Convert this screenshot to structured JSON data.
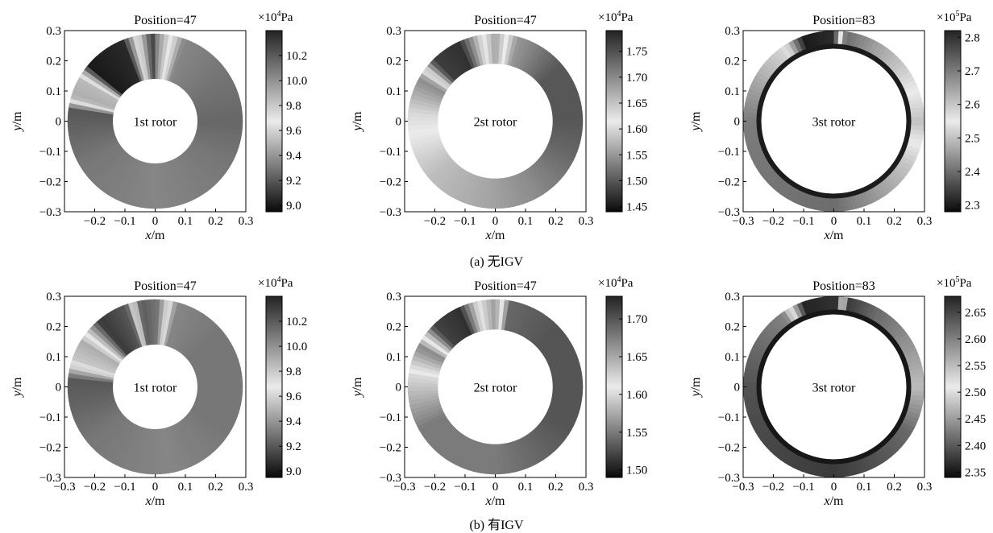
{
  "figure": {
    "rows": [
      {
        "caption": "(a) 无IGV"
      },
      {
        "caption": "(b) 有IGV"
      }
    ]
  },
  "chart_data": [
    {
      "type": "heatmap",
      "row": 0,
      "col": 0,
      "title": "Position=47",
      "label": "1st rotor",
      "xlabel": "x",
      "xunit": "/m",
      "ylabel": "y",
      "yunit": "/m",
      "xticks": [
        "−0.2",
        "−0.1",
        "0",
        "0.1",
        "0.2",
        "0.3"
      ],
      "yticks": [
        "0.3",
        "0.2",
        "0.1",
        "0",
        "−0.1",
        "−0.2",
        "−0.3"
      ],
      "xlim": [
        -0.3,
        0.3
      ],
      "ylim": [
        -0.3,
        0.3
      ],
      "annulus_radius_m": [
        0.14,
        0.29
      ],
      "colorbar": {
        "unit_prefix": "×10",
        "unit_exp": "4",
        "unit": "Pa",
        "range": [
          8.95,
          10.4
        ],
        "ticks": [
          "10.2",
          "10.0",
          "9.8",
          "9.6",
          "9.4",
          "9.2",
          "9.0"
        ]
      },
      "field": [
        {
          "angle_deg": 0,
          "value": 9.25
        },
        {
          "angle_deg": 40,
          "value": 9.3
        },
        {
          "angle_deg": 70,
          "value": 9.35
        },
        {
          "angle_deg": 88,
          "value": 10.0
        },
        {
          "angle_deg": 92,
          "value": 10.3
        },
        {
          "angle_deg": 102,
          "value": 9.7
        },
        {
          "angle_deg": 112,
          "value": 9.05
        },
        {
          "angle_deg": 140,
          "value": 9.0
        },
        {
          "angle_deg": 150,
          "value": 9.85
        },
        {
          "angle_deg": 163,
          "value": 9.9
        },
        {
          "angle_deg": 172,
          "value": 9.2
        },
        {
          "angle_deg": 210,
          "value": 9.3
        },
        {
          "angle_deg": 270,
          "value": 9.35
        },
        {
          "angle_deg": 330,
          "value": 9.3
        },
        {
          "angle_deg": 360,
          "value": 9.25
        }
      ]
    },
    {
      "type": "heatmap",
      "row": 0,
      "col": 1,
      "title": "Position=47",
      "label": "2st rotor",
      "xlabel": "x",
      "xunit": "/m",
      "ylabel": "y",
      "yunit": "/m",
      "xticks": [
        "−0.2",
        "−0.1",
        "0",
        "0.1",
        "0.2",
        "0.3"
      ],
      "yticks": [
        "0.3",
        "0.2",
        "0.1",
        "0",
        "−0.1",
        "−0.2",
        "−0.3"
      ],
      "xlim": [
        -0.3,
        0.3
      ],
      "ylim": [
        -0.3,
        0.3
      ],
      "annulus_radius_m": [
        0.19,
        0.29
      ],
      "colorbar": {
        "unit_prefix": "×10",
        "unit_exp": "4",
        "unit": "Pa",
        "range": [
          1.44,
          1.79
        ],
        "ticks": [
          "1.75",
          "1.70",
          "1.65",
          "1.60",
          "1.55",
          "1.50",
          "1.45"
        ]
      },
      "field": [
        {
          "angle_deg": 0,
          "value": 1.5
        },
        {
          "angle_deg": 40,
          "value": 1.5
        },
        {
          "angle_deg": 75,
          "value": 1.55
        },
        {
          "angle_deg": 90,
          "value": 1.68
        },
        {
          "angle_deg": 100,
          "value": 1.6
        },
        {
          "angle_deg": 115,
          "value": 1.47
        },
        {
          "angle_deg": 135,
          "value": 1.48
        },
        {
          "angle_deg": 150,
          "value": 1.7
        },
        {
          "angle_deg": 175,
          "value": 1.63
        },
        {
          "angle_deg": 220,
          "value": 1.58
        },
        {
          "angle_deg": 265,
          "value": 1.56
        },
        {
          "angle_deg": 300,
          "value": 1.54
        },
        {
          "angle_deg": 340,
          "value": 1.51
        },
        {
          "angle_deg": 360,
          "value": 1.5
        }
      ]
    },
    {
      "type": "heatmap",
      "row": 0,
      "col": 2,
      "title": "Position=83",
      "label": "3st rotor",
      "xlabel": "x",
      "xunit": "/m",
      "ylabel": "y",
      "yunit": "/m",
      "xticks": [
        "−0.3",
        "−0.2",
        "−0.1",
        "0",
        "0.1",
        "0.2",
        "0.3"
      ],
      "yticks": [
        "0.3",
        "0.2",
        "0.1",
        "0",
        "−0.1",
        "−0.2",
        "−0.3"
      ],
      "xlim": [
        -0.3,
        0.3
      ],
      "ylim": [
        -0.3,
        0.3
      ],
      "annulus_radius_m": [
        0.24,
        0.3
      ],
      "colorbar": {
        "unit_prefix": "×10",
        "unit_exp": "5",
        "unit": "Pa",
        "range": [
          2.28,
          2.82
        ],
        "ticks": [
          "2.8",
          "2.7",
          "2.6",
          "2.5",
          "2.4",
          "2.3"
        ]
      },
      "field": [
        {
          "angle_deg": 0,
          "value": 2.5
        },
        {
          "angle_deg": 60,
          "value": 2.65
        },
        {
          "angle_deg": 82,
          "value": 2.72
        },
        {
          "angle_deg": 90,
          "value": 2.32
        },
        {
          "angle_deg": 110,
          "value": 2.3
        },
        {
          "angle_deg": 125,
          "value": 2.58
        },
        {
          "angle_deg": 180,
          "value": 2.7
        },
        {
          "angle_deg": 270,
          "value": 2.72
        },
        {
          "angle_deg": 330,
          "value": 2.6
        },
        {
          "angle_deg": 360,
          "value": 2.5
        }
      ],
      "inner_edge_value": 2.3
    },
    {
      "type": "heatmap",
      "row": 1,
      "col": 0,
      "title": "Position=47",
      "label": "1st rotor",
      "xlabel": "x",
      "xunit": "/m",
      "ylabel": "y",
      "yunit": "/m",
      "xticks": [
        "−0.3",
        "−0.2",
        "−0.1",
        "0",
        "0.1",
        "0.2",
        "0.3"
      ],
      "yticks": [
        "0.3",
        "0.2",
        "0.1",
        "0",
        "−0.1",
        "−0.2",
        "−0.3"
      ],
      "xlim": [
        -0.3,
        0.3
      ],
      "ylim": [
        -0.3,
        0.3
      ],
      "annulus_radius_m": [
        0.14,
        0.29
      ],
      "colorbar": {
        "unit_prefix": "×10",
        "unit_exp": "4",
        "unit": "Pa",
        "range": [
          8.95,
          10.4
        ],
        "ticks": [
          "10.2",
          "10.0",
          "9.8",
          "9.6",
          "9.4",
          "9.2",
          "9.0"
        ]
      },
      "field": [
        {
          "angle_deg": 0,
          "value": 9.3
        },
        {
          "angle_deg": 40,
          "value": 9.3
        },
        {
          "angle_deg": 75,
          "value": 9.35
        },
        {
          "angle_deg": 88,
          "value": 10.1
        },
        {
          "angle_deg": 100,
          "value": 10.2
        },
        {
          "angle_deg": 110,
          "value": 9.2
        },
        {
          "angle_deg": 130,
          "value": 9.1
        },
        {
          "angle_deg": 148,
          "value": 9.9
        },
        {
          "angle_deg": 162,
          "value": 9.8
        },
        {
          "angle_deg": 175,
          "value": 9.2
        },
        {
          "angle_deg": 220,
          "value": 9.3
        },
        {
          "angle_deg": 280,
          "value": 9.35
        },
        {
          "angle_deg": 330,
          "value": 9.3
        },
        {
          "angle_deg": 360,
          "value": 9.3
        }
      ]
    },
    {
      "type": "heatmap",
      "row": 1,
      "col": 1,
      "title": "Position=47",
      "label": "2st rotor",
      "xlabel": "x",
      "xunit": "/m",
      "ylabel": "y",
      "yunit": "/m",
      "xticks": [
        "−0.3",
        "−0.2",
        "−0.1",
        "0",
        "0.1",
        "0.2",
        "0.3"
      ],
      "yticks": [
        "0.3",
        "0.2",
        "0.1",
        "0",
        "−0.1",
        "−0.2",
        "−0.3"
      ],
      "xlim": [
        -0.3,
        0.3
      ],
      "ylim": [
        -0.3,
        0.3
      ],
      "annulus_radius_m": [
        0.19,
        0.29
      ],
      "colorbar": {
        "unit_prefix": "×10",
        "unit_exp": "4",
        "unit": "Pa",
        "range": [
          1.49,
          1.73
        ],
        "ticks": [
          "1.70",
          "1.65",
          "1.60",
          "1.55",
          "1.50"
        ]
      },
      "field": [
        {
          "angle_deg": 0,
          "value": 1.53
        },
        {
          "angle_deg": 45,
          "value": 1.53
        },
        {
          "angle_deg": 80,
          "value": 1.54
        },
        {
          "angle_deg": 90,
          "value": 1.66
        },
        {
          "angle_deg": 100,
          "value": 1.62
        },
        {
          "angle_deg": 115,
          "value": 1.51
        },
        {
          "angle_deg": 135,
          "value": 1.52
        },
        {
          "angle_deg": 152,
          "value": 1.67
        },
        {
          "angle_deg": 172,
          "value": 1.6
        },
        {
          "angle_deg": 210,
          "value": 1.55
        },
        {
          "angle_deg": 270,
          "value": 1.55
        },
        {
          "angle_deg": 330,
          "value": 1.53
        },
        {
          "angle_deg": 360,
          "value": 1.53
        }
      ]
    },
    {
      "type": "heatmap",
      "row": 1,
      "col": 2,
      "title": "Position=83",
      "label": "3st rotor",
      "xlabel": "x",
      "xunit": "/m",
      "ylabel": "y",
      "yunit": "/m",
      "xticks": [
        "−0.3",
        "−0.2",
        "−0.1",
        "0",
        "0.1",
        "0.2",
        "0.3"
      ],
      "yticks": [
        "0.3",
        "0.2",
        "0.1",
        "0",
        "−0.1",
        "−0.2",
        "−0.3"
      ],
      "xlim": [
        -0.3,
        0.3
      ],
      "ylim": [
        -0.3,
        0.3
      ],
      "annulus_radius_m": [
        0.24,
        0.3
      ],
      "colorbar": {
        "unit_prefix": "×10",
        "unit_exp": "5",
        "unit": "Pa",
        "range": [
          2.34,
          2.68
        ],
        "ticks": [
          "2.65",
          "2.60",
          "2.55",
          "2.50",
          "2.45",
          "2.40",
          "2.35"
        ]
      },
      "field": [
        {
          "angle_deg": 0,
          "value": 2.55
        },
        {
          "angle_deg": 60,
          "value": 2.62
        },
        {
          "angle_deg": 80,
          "value": 2.66
        },
        {
          "angle_deg": 88,
          "value": 2.37
        },
        {
          "angle_deg": 110,
          "value": 2.36
        },
        {
          "angle_deg": 125,
          "value": 2.6
        },
        {
          "angle_deg": 180,
          "value": 2.64
        },
        {
          "angle_deg": 270,
          "value": 2.66
        },
        {
          "angle_deg": 330,
          "value": 2.62
        },
        {
          "angle_deg": 360,
          "value": 2.55
        }
      ],
      "inner_edge_value": 2.35
    }
  ]
}
